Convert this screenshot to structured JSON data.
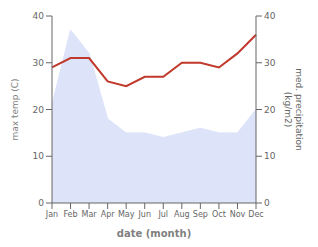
{
  "chart_data": {
    "type": "area",
    "xlabel": "date (month)",
    "ylabel": "max temp (C)",
    "y2label": "med. precipitation\n(kg/m2)",
    "categories": [
      "Jan",
      "Feb",
      "Mar",
      "Apr",
      "May",
      "Jun",
      "Jul",
      "Aug",
      "Sep",
      "Oct",
      "Nov",
      "Dec"
    ],
    "series": [
      {
        "type": "area",
        "color": "#dde3f8",
        "values": [
          21,
          37,
          32,
          18,
          15,
          15,
          14,
          15,
          16,
          15,
          15,
          20
        ]
      },
      {
        "type": "line",
        "color": "#c0392b",
        "axis": "y2",
        "values": [
          29,
          31,
          31,
          26,
          25,
          27,
          27,
          30,
          30,
          29,
          32,
          36
        ]
      }
    ],
    "ylim": [
      0,
      40
    ],
    "yticks": [
      0,
      10,
      20,
      30,
      40
    ],
    "y2lim": [
      0,
      40
    ],
    "y2ticks": [
      0,
      10,
      20,
      30,
      40
    ],
    "grid": false
  }
}
